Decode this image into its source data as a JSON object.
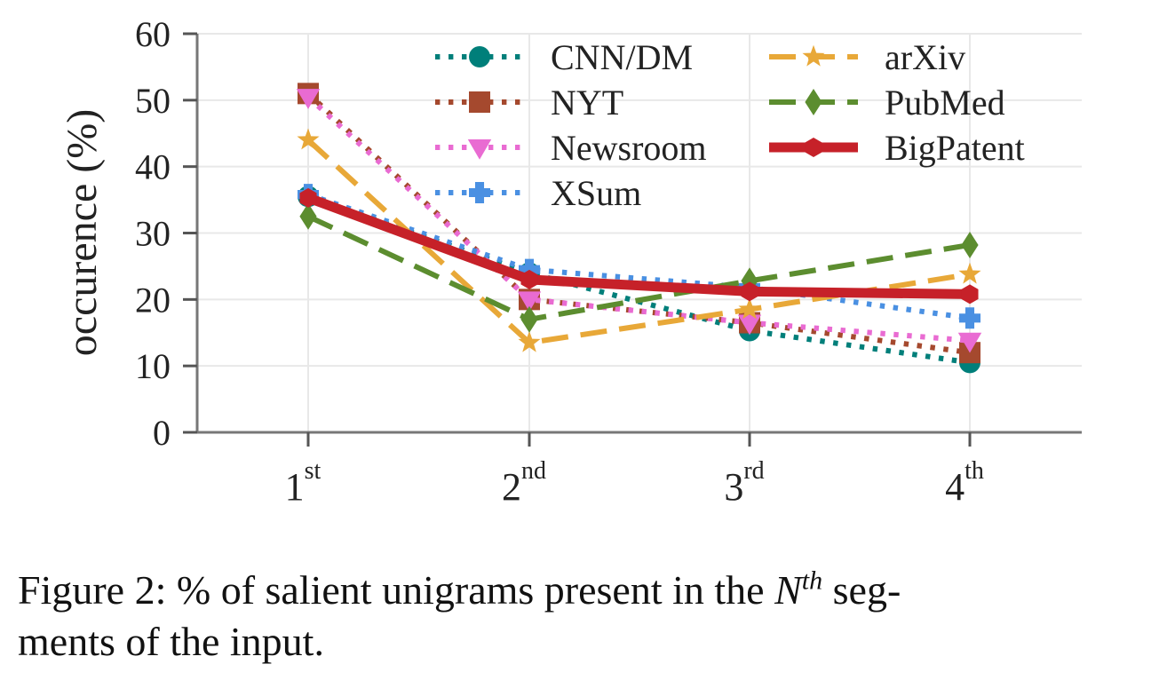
{
  "chart_data": {
    "type": "line",
    "categories": [
      {
        "base": "1",
        "sup": "st"
      },
      {
        "base": "2",
        "sup": "nd"
      },
      {
        "base": "3",
        "sup": "rd"
      },
      {
        "base": "4",
        "sup": "th"
      }
    ],
    "ylabel": "occurence (%)",
    "ylim": [
      0,
      60
    ],
    "yticks": [
      0,
      10,
      20,
      30,
      40,
      50,
      60
    ],
    "grid": true,
    "legend_position": "top-right",
    "series": [
      {
        "name": "CNN/DM",
        "values": [
          35.5,
          24.0,
          15.3,
          10.5
        ],
        "color": "#007f7a",
        "marker": "circle",
        "dash": "dotted"
      },
      {
        "name": "NYT",
        "values": [
          51.0,
          20.0,
          16.5,
          12.0
        ],
        "color": "#a5492e",
        "marker": "square",
        "dash": "dotted"
      },
      {
        "name": "Newsroom",
        "values": [
          50.5,
          20.0,
          16.5,
          13.8
        ],
        "color": "#e96bd2",
        "marker": "triangle-down",
        "dash": "dotted"
      },
      {
        "name": "XSum",
        "values": [
          35.8,
          24.5,
          21.8,
          17.2
        ],
        "color": "#4a90e2",
        "marker": "plus",
        "dash": "dotted"
      },
      {
        "name": "arXiv",
        "values": [
          44.0,
          13.5,
          18.5,
          23.8
        ],
        "color": "#e8a838",
        "marker": "star",
        "dash": "dashed"
      },
      {
        "name": "PubMed",
        "values": [
          32.5,
          17.0,
          22.8,
          28.2
        ],
        "color": "#5c8d2f",
        "marker": "diamond",
        "dash": "dashed"
      },
      {
        "name": "BigPatent",
        "values": [
          35.3,
          23.0,
          21.2,
          20.8
        ],
        "color": "#c62129",
        "marker": "hexagon",
        "dash": "solid"
      }
    ]
  },
  "caption": {
    "prefix": "Figure 2: % of salient unigrams present in the ",
    "math_base": "N",
    "math_sup": "th",
    "suffix": " seg-",
    "line2": "ments of the input."
  }
}
